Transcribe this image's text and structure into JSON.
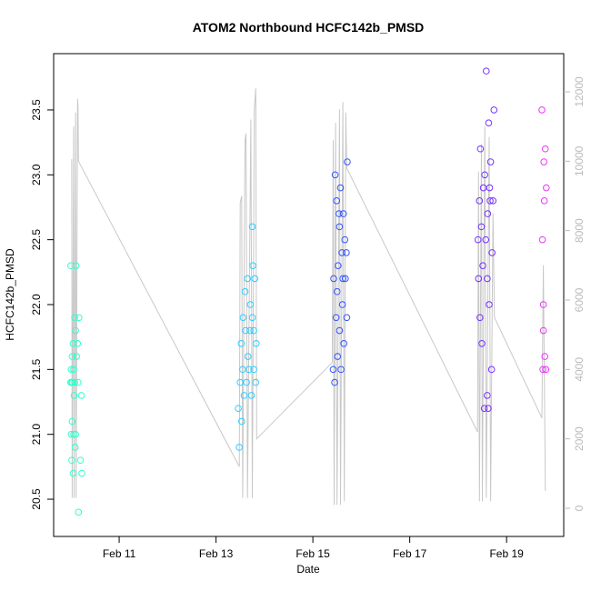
{
  "chart_data": {
    "type": "scatter",
    "title": "ATOM2 Northbound HCFC142b_PMSD",
    "x_label": "Date",
    "y_label": "HCFC142b_PMSD",
    "xlim": [
      9.647,
      20.18
    ],
    "xticks": [
      {
        "value": 11,
        "label": "Feb 11"
      },
      {
        "value": 13,
        "label": "Feb 13"
      },
      {
        "value": 15,
        "label": "Feb 15"
      },
      {
        "value": 17,
        "label": "Feb 17"
      },
      {
        "value": 19,
        "label": "Feb 19"
      }
    ],
    "ylim": [
      20.213,
      23.934
    ],
    "yticks": [
      20.5,
      {
        "value": 21,
        "label": "21.0"
      },
      21.5,
      {
        "value": 22,
        "label": "22.0"
      },
      22.5,
      {
        "value": 23,
        "label": "23.0"
      },
      23.5
    ],
    "y2lim": [
      -812,
      13100
    ],
    "y2ticks": [
      0,
      2000,
      4000,
      6000,
      8000,
      10000,
      12000
    ],
    "series": [
      {
        "type": "line",
        "axis": "y2",
        "color": "#c8c8c8",
        "x": [
          10.02,
          10.03,
          10.06,
          10.07,
          10.1,
          10.11,
          10.14,
          10.15,
          10.16,
          13.48,
          13.5,
          13.53,
          13.55,
          13.6,
          13.62,
          13.65,
          13.72,
          13.75,
          13.79,
          13.82,
          13.84,
          15.4,
          15.42,
          15.44,
          15.47,
          15.5,
          15.55,
          15.57,
          15.62,
          15.65,
          15.68,
          15.7,
          18.4,
          18.42,
          18.44,
          18.48,
          18.5,
          18.55,
          18.58,
          18.64,
          18.67,
          18.72,
          18.75,
          19.73,
          19.76,
          19.8
        ],
        "values": [
          10060,
          300,
          11000,
          300,
          11400,
          300,
          11800,
          11600,
          10000,
          1200,
          8800,
          9000,
          300,
          10600,
          10800,
          300,
          11200,
          300,
          11500,
          12100,
          2000,
          4200,
          10600,
          100,
          11100,
          100,
          11500,
          100,
          11700,
          200,
          11400,
          9800,
          2200,
          9700,
          200,
          10500,
          200,
          11000,
          300,
          10700,
          200,
          8500,
          5500,
          2600,
          7000,
          500
        ]
      },
      {
        "color": "#33ffcc",
        "x": [
          10.0,
          10.0,
          10.01,
          10.01,
          10.02,
          10.02,
          10.03,
          10.03,
          10.04,
          10.05,
          10.05,
          10.06,
          10.06,
          10.07,
          10.08,
          10.08,
          10.09,
          10.1,
          10.1,
          10.11,
          10.12,
          10.14,
          10.15,
          10.16,
          10.17,
          10.2,
          10.22,
          10.23
        ],
        "values": [
          21.4,
          22.3,
          21.5,
          21.0,
          21.4,
          20.8,
          21.6,
          21.1,
          21.4,
          21.7,
          20.7,
          21.5,
          21.0,
          21.3,
          21.4,
          21.9,
          20.9,
          21.8,
          21.0,
          22.3,
          21.6,
          21.7,
          21.4,
          20.4,
          21.9,
          20.8,
          21.3,
          20.7
        ]
      },
      {
        "color": "#33ccff",
        "x": [
          13.46,
          13.48,
          13.5,
          13.52,
          13.53,
          13.55,
          13.56,
          13.58,
          13.6,
          13.61,
          13.63,
          13.65,
          13.66,
          13.68,
          13.7,
          13.71,
          13.73,
          13.75,
          13.76,
          13.78,
          13.8,
          13.82,
          13.83,
          13.75,
          13.78
        ],
        "values": [
          21.2,
          20.9,
          21.4,
          21.7,
          21.1,
          21.5,
          21.9,
          21.3,
          22.1,
          21.8,
          21.4,
          22.2,
          21.6,
          21.5,
          21.8,
          22.0,
          21.3,
          21.9,
          22.3,
          21.5,
          22.2,
          21.4,
          21.7,
          22.6,
          21.8
        ]
      },
      {
        "color": "#3355ff",
        "x": [
          15.42,
          15.43,
          15.45,
          15.46,
          15.48,
          15.49,
          15.51,
          15.52,
          15.54,
          15.55,
          15.57,
          15.58,
          15.6,
          15.61,
          15.63,
          15.64,
          15.66,
          15.67,
          15.69,
          15.7,
          15.71,
          15.5,
          15.55,
          15.62
        ],
        "values": [
          21.5,
          22.2,
          21.4,
          23.0,
          21.9,
          22.8,
          21.6,
          22.3,
          22.7,
          21.8,
          22.9,
          21.5,
          22.4,
          22.0,
          22.7,
          21.7,
          22.5,
          22.2,
          22.4,
          21.9,
          23.1,
          22.1,
          22.6,
          22.2
        ]
      },
      {
        "color": "#7733ff",
        "x": [
          18.41,
          18.42,
          18.44,
          18.45,
          18.46,
          18.48,
          18.49,
          18.51,
          18.52,
          18.54,
          18.55,
          18.57,
          18.58,
          18.6,
          18.61,
          18.63,
          18.64,
          18.66,
          18.67,
          18.69,
          18.7,
          18.72,
          18.74,
          18.6,
          18.62,
          18.65
        ],
        "values": [
          22.5,
          22.2,
          22.8,
          21.9,
          23.2,
          22.6,
          21.7,
          22.3,
          22.9,
          21.2,
          23.0,
          22.5,
          23.8,
          21.3,
          22.7,
          23.4,
          22.0,
          22.8,
          23.1,
          21.5,
          22.4,
          22.8,
          23.5,
          22.2,
          21.2,
          22.9
        ]
      },
      {
        "color": "#ee33ff",
        "x": [
          19.73,
          19.74,
          19.75,
          19.76,
          19.76,
          19.77,
          19.78,
          19.79,
          19.8,
          19.81,
          19.82
        ],
        "values": [
          23.5,
          22.5,
          21.5,
          22.0,
          21.8,
          23.1,
          22.8,
          21.6,
          23.2,
          21.5,
          22.9
        ]
      }
    ]
  }
}
